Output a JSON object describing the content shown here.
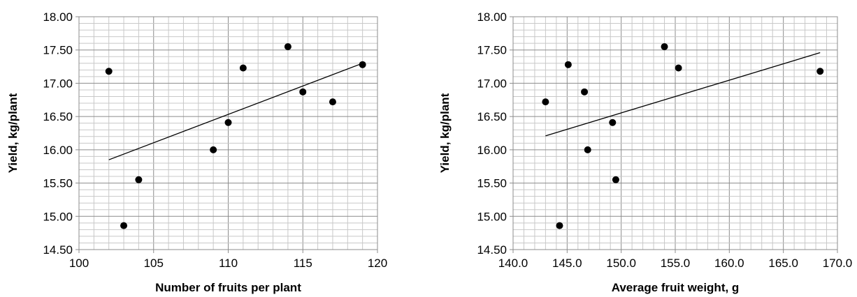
{
  "chart_data": [
    {
      "type": "scatter",
      "title": "",
      "xlabel": "Number of fruits per plant",
      "ylabel": "Yield, kg/plant",
      "xlim": [
        100,
        120
      ],
      "ylim": [
        14.5,
        18.0
      ],
      "x_ticks": [
        "100",
        "105",
        "110",
        "115",
        "120"
      ],
      "y_ticks": [
        "14.50",
        "15.00",
        "15.50",
        "16.00",
        "16.50",
        "17.00",
        "17.50",
        "18.00"
      ],
      "x_major_step": 5,
      "x_minor_step": 1,
      "y_minor_step": 0.1,
      "grid": true,
      "marker_color": "#000000",
      "points": [
        {
          "x": 102,
          "y": 17.18
        },
        {
          "x": 103,
          "y": 14.86
        },
        {
          "x": 104,
          "y": 15.55
        },
        {
          "x": 109,
          "y": 16.0
        },
        {
          "x": 110,
          "y": 16.41
        },
        {
          "x": 111,
          "y": 17.23
        },
        {
          "x": 114,
          "y": 17.55
        },
        {
          "x": 115,
          "y": 16.87
        },
        {
          "x": 117,
          "y": 16.72
        },
        {
          "x": 119,
          "y": 17.28
        }
      ],
      "trendline": {
        "x": [
          102,
          119
        ],
        "y": [
          15.85,
          17.3
        ]
      }
    },
    {
      "type": "scatter",
      "title": "",
      "xlabel": "Average fruit weight, g",
      "ylabel": "Yield, kg/plant",
      "xlim": [
        140.0,
        170.0
      ],
      "ylim": [
        14.5,
        18.0
      ],
      "x_ticks": [
        "140.0",
        "145.0",
        "150.0",
        "155.0",
        "160.0",
        "165.0",
        "170.0"
      ],
      "y_ticks": [
        "14.50",
        "15.00",
        "15.50",
        "16.00",
        "16.50",
        "17.00",
        "17.50",
        "18.00"
      ],
      "x_major_step": 5,
      "x_minor_step": 1,
      "y_minor_step": 0.1,
      "grid": true,
      "marker_color": "#000000",
      "points": [
        {
          "x": 143.0,
          "y": 16.72
        },
        {
          "x": 144.3,
          "y": 14.86
        },
        {
          "x": 145.1,
          "y": 17.28
        },
        {
          "x": 146.6,
          "y": 16.87
        },
        {
          "x": 146.9,
          "y": 16.0
        },
        {
          "x": 149.2,
          "y": 16.41
        },
        {
          "x": 149.5,
          "y": 15.55
        },
        {
          "x": 154.0,
          "y": 17.55
        },
        {
          "x": 155.3,
          "y": 17.23
        },
        {
          "x": 168.4,
          "y": 17.18
        }
      ],
      "trendline": {
        "x": [
          143.0,
          168.4
        ],
        "y": [
          16.21,
          17.46
        ]
      }
    }
  ]
}
